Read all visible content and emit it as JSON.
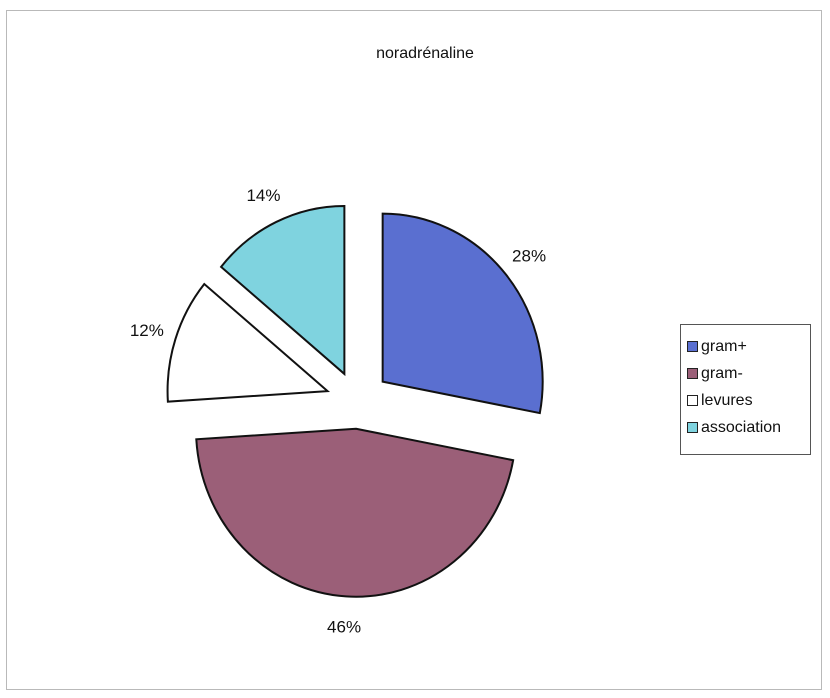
{
  "chart_data": {
    "type": "pie",
    "title": "noradrénaline",
    "categories": [
      "gram+",
      "gram-",
      "levures",
      "association"
    ],
    "values": [
      28,
      46,
      12,
      14
    ],
    "labels": [
      "28%",
      "46%",
      "12%",
      "14%"
    ],
    "colors": [
      "#5a6fd0",
      "#9b5f78",
      "#ffffff",
      "#7fd3df"
    ],
    "exploded": true,
    "legend_position": "right"
  }
}
